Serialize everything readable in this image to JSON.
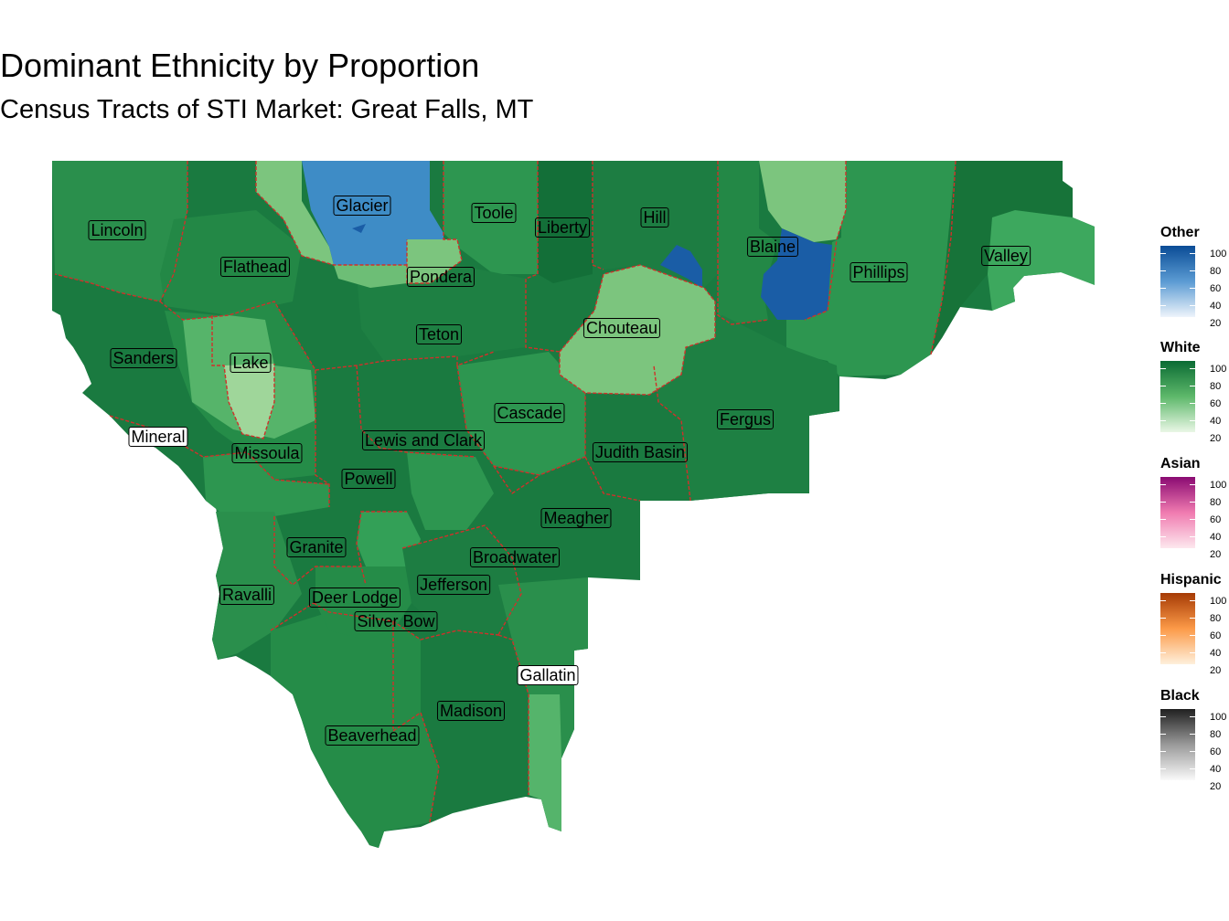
{
  "title": "Dominant Ethnicity by Proportion",
  "subtitle": "Census Tracts of STI Market: Great Falls, MT",
  "colors": {
    "white_dark": "#1a7a40",
    "white_mid": "#2d9650",
    "white_light": "#7cc57e",
    "other_blue": "#3e8cc6",
    "other_dark": "#1a5da6",
    "county_border": "#d0302a"
  },
  "counties": [
    {
      "name": "Lincoln",
      "boxed": false
    },
    {
      "name": "Flathead",
      "boxed": false
    },
    {
      "name": "Glacier",
      "boxed": false
    },
    {
      "name": "Toole",
      "boxed": false
    },
    {
      "name": "Liberty",
      "boxed": false
    },
    {
      "name": "Hill",
      "boxed": false
    },
    {
      "name": "Blaine",
      "boxed": false
    },
    {
      "name": "Phillips",
      "boxed": false
    },
    {
      "name": "Valley",
      "boxed": false
    },
    {
      "name": "Pondera",
      "boxed": false
    },
    {
      "name": "Teton",
      "boxed": false
    },
    {
      "name": "Chouteau",
      "boxed": false
    },
    {
      "name": "Sanders",
      "boxed": false
    },
    {
      "name": "Lake",
      "boxed": false
    },
    {
      "name": "Cascade",
      "boxed": false
    },
    {
      "name": "Fergus",
      "boxed": false
    },
    {
      "name": "Mineral",
      "boxed": true
    },
    {
      "name": "Lewis and Clark",
      "boxed": false
    },
    {
      "name": "Missoula",
      "boxed": false
    },
    {
      "name": "Judith Basin",
      "boxed": false
    },
    {
      "name": "Powell",
      "boxed": false
    },
    {
      "name": "Meagher",
      "boxed": false
    },
    {
      "name": "Granite",
      "boxed": false
    },
    {
      "name": "Broadwater",
      "boxed": false
    },
    {
      "name": "Jefferson",
      "boxed": false
    },
    {
      "name": "Ravalli",
      "boxed": false
    },
    {
      "name": "Deer Lodge",
      "boxed": false
    },
    {
      "name": "Silver Bow",
      "boxed": false
    },
    {
      "name": "Gallatin",
      "boxed": true
    },
    {
      "name": "Madison",
      "boxed": false
    },
    {
      "name": "Beaverhead",
      "boxed": false
    }
  ],
  "legends": [
    {
      "title": "Other",
      "colors": [
        "#eef4fb",
        "#5b9bd3",
        "#0a4c96"
      ],
      "labels": [
        "100",
        "80",
        "60",
        "40",
        "20"
      ]
    },
    {
      "title": "White",
      "colors": [
        "#eaf7e6",
        "#5db86a",
        "#0b6b34"
      ],
      "labels": [
        "100",
        "80",
        "60",
        "40",
        "20"
      ]
    },
    {
      "title": "Asian",
      "colors": [
        "#fde8ee",
        "#f07bb0",
        "#8a0a72"
      ],
      "labels": [
        "100",
        "80",
        "60",
        "40",
        "20"
      ]
    },
    {
      "title": "Hispanic",
      "colors": [
        "#fef0dc",
        "#fc9a48",
        "#a63b05"
      ],
      "labels": [
        "100",
        "80",
        "60",
        "40",
        "20"
      ]
    },
    {
      "title": "Black",
      "colors": [
        "#fafafa",
        "#9a9a9a",
        "#202020"
      ],
      "labels": [
        "100",
        "80",
        "60",
        "40",
        "20"
      ]
    }
  ]
}
